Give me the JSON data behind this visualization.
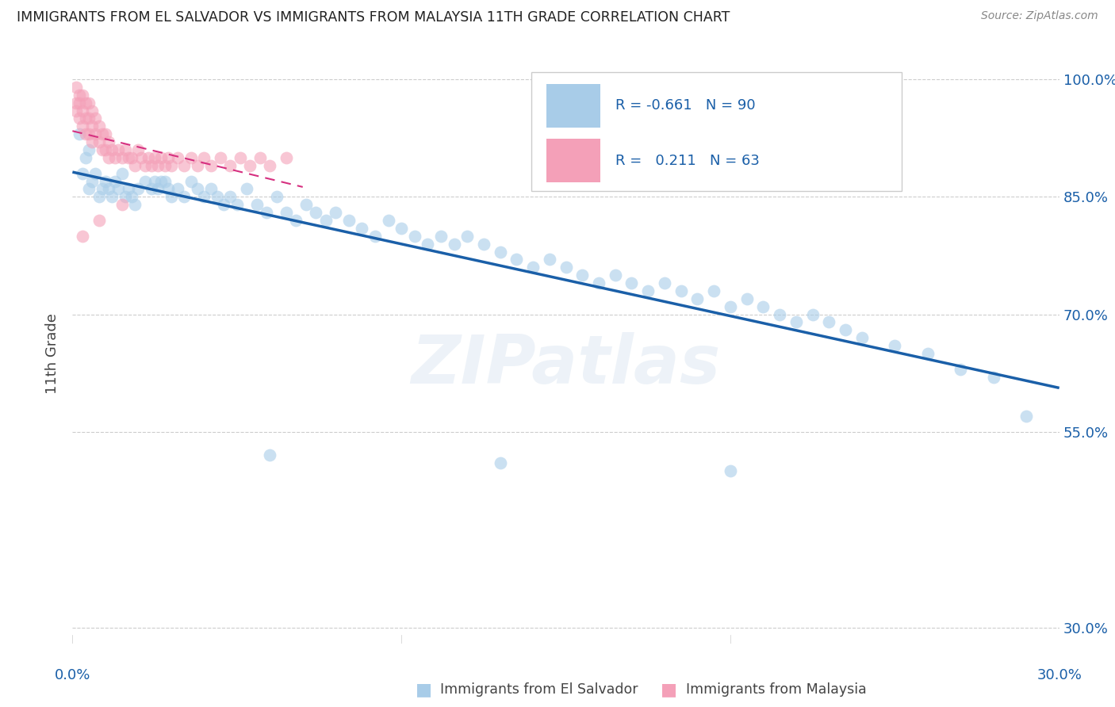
{
  "title": "IMMIGRANTS FROM EL SALVADOR VS IMMIGRANTS FROM MALAYSIA 11TH GRADE CORRELATION CHART",
  "source": "Source: ZipAtlas.com",
  "ylabel": "11th Grade",
  "xlim": [
    0.0,
    0.3
  ],
  "ylim": [
    0.28,
    1.02
  ],
  "yticks": [
    0.3,
    0.55,
    0.7,
    0.85,
    1.0
  ],
  "ytick_labels": [
    "30.0%",
    "55.0%",
    "70.0%",
    "85.0%",
    "100.0%"
  ],
  "r_blue": -0.661,
  "n_blue": 90,
  "r_pink": 0.211,
  "n_pink": 63,
  "legend_label_blue": "Immigrants from El Salvador",
  "legend_label_pink": "Immigrants from Malaysia",
  "watermark": "ZIPatlas",
  "scatter_blue_x": [
    0.002,
    0.003,
    0.004,
    0.005,
    0.005,
    0.006,
    0.007,
    0.008,
    0.009,
    0.01,
    0.011,
    0.012,
    0.013,
    0.014,
    0.015,
    0.016,
    0.017,
    0.018,
    0.019,
    0.02,
    0.022,
    0.024,
    0.025,
    0.026,
    0.027,
    0.028,
    0.029,
    0.03,
    0.032,
    0.034,
    0.036,
    0.038,
    0.04,
    0.042,
    0.044,
    0.046,
    0.048,
    0.05,
    0.053,
    0.056,
    0.059,
    0.062,
    0.065,
    0.068,
    0.071,
    0.074,
    0.077,
    0.08,
    0.084,
    0.088,
    0.092,
    0.096,
    0.1,
    0.104,
    0.108,
    0.112,
    0.116,
    0.12,
    0.125,
    0.13,
    0.135,
    0.14,
    0.145,
    0.15,
    0.155,
    0.16,
    0.165,
    0.17,
    0.175,
    0.18,
    0.185,
    0.19,
    0.195,
    0.2,
    0.205,
    0.21,
    0.215,
    0.22,
    0.225,
    0.23,
    0.235,
    0.24,
    0.25,
    0.26,
    0.27,
    0.28,
    0.29,
    0.06,
    0.13,
    0.2
  ],
  "scatter_blue_y": [
    0.93,
    0.88,
    0.9,
    0.91,
    0.86,
    0.87,
    0.88,
    0.85,
    0.86,
    0.87,
    0.86,
    0.85,
    0.87,
    0.86,
    0.88,
    0.85,
    0.86,
    0.85,
    0.84,
    0.86,
    0.87,
    0.86,
    0.87,
    0.86,
    0.87,
    0.87,
    0.86,
    0.85,
    0.86,
    0.85,
    0.87,
    0.86,
    0.85,
    0.86,
    0.85,
    0.84,
    0.85,
    0.84,
    0.86,
    0.84,
    0.83,
    0.85,
    0.83,
    0.82,
    0.84,
    0.83,
    0.82,
    0.83,
    0.82,
    0.81,
    0.8,
    0.82,
    0.81,
    0.8,
    0.79,
    0.8,
    0.79,
    0.8,
    0.79,
    0.78,
    0.77,
    0.76,
    0.77,
    0.76,
    0.75,
    0.74,
    0.75,
    0.74,
    0.73,
    0.74,
    0.73,
    0.72,
    0.73,
    0.71,
    0.72,
    0.71,
    0.7,
    0.69,
    0.7,
    0.69,
    0.68,
    0.67,
    0.66,
    0.65,
    0.63,
    0.62,
    0.57,
    0.52,
    0.51,
    0.5
  ],
  "scatter_pink_x": [
    0.001,
    0.001,
    0.001,
    0.002,
    0.002,
    0.002,
    0.003,
    0.003,
    0.003,
    0.004,
    0.004,
    0.004,
    0.005,
    0.005,
    0.005,
    0.006,
    0.006,
    0.006,
    0.007,
    0.007,
    0.008,
    0.008,
    0.009,
    0.009,
    0.01,
    0.01,
    0.011,
    0.011,
    0.012,
    0.013,
    0.014,
    0.015,
    0.016,
    0.017,
    0.018,
    0.019,
    0.02,
    0.021,
    0.022,
    0.023,
    0.024,
    0.025,
    0.026,
    0.027,
    0.028,
    0.029,
    0.03,
    0.032,
    0.034,
    0.036,
    0.038,
    0.04,
    0.042,
    0.045,
    0.048,
    0.051,
    0.054,
    0.057,
    0.06,
    0.065,
    0.003,
    0.008,
    0.015
  ],
  "scatter_pink_y": [
    0.99,
    0.97,
    0.96,
    0.98,
    0.97,
    0.95,
    0.98,
    0.96,
    0.94,
    0.97,
    0.95,
    0.93,
    0.97,
    0.95,
    0.93,
    0.96,
    0.94,
    0.92,
    0.95,
    0.93,
    0.94,
    0.92,
    0.93,
    0.91,
    0.93,
    0.91,
    0.92,
    0.9,
    0.91,
    0.9,
    0.91,
    0.9,
    0.91,
    0.9,
    0.9,
    0.89,
    0.91,
    0.9,
    0.89,
    0.9,
    0.89,
    0.9,
    0.89,
    0.9,
    0.89,
    0.9,
    0.89,
    0.9,
    0.89,
    0.9,
    0.89,
    0.9,
    0.89,
    0.9,
    0.89,
    0.9,
    0.89,
    0.9,
    0.89,
    0.9,
    0.8,
    0.82,
    0.84
  ],
  "color_blue": "#a8cce8",
  "color_pink": "#f4a0b8",
  "line_blue": "#1a5fa8",
  "line_pink": "#d63080",
  "title_color": "#222222",
  "axis_color": "#1a5fa8",
  "bg_color": "#ffffff",
  "grid_color": "#cccccc",
  "legend_r_color": "#1a5fa8"
}
